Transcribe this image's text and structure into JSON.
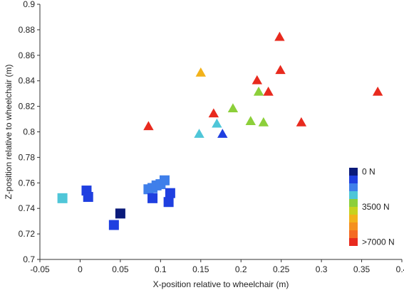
{
  "chart_data": {
    "type": "scatter",
    "title": "",
    "xlabel": "X-position relative to wheelchair (m)",
    "ylabel": "Z-position relative to wheelchair (m)",
    "xlim": [
      -0.05,
      0.4
    ],
    "ylim": [
      0.7,
      0.9
    ],
    "x_ticks": [
      -0.05,
      0,
      0.05,
      0.1,
      0.15,
      0.2,
      0.25,
      0.3,
      0.35,
      0.4
    ],
    "x_tick_labels": [
      "-0.05",
      "0",
      "0.05",
      "0.1",
      "0.15",
      "0.2",
      "0.25",
      "0.3",
      "0.35",
      "0.4"
    ],
    "y_ticks": [
      0.7,
      0.72,
      0.74,
      0.76,
      0.78,
      0.8,
      0.82,
      0.84,
      0.86,
      0.88,
      0.9
    ],
    "y_tick_labels": [
      "0.7",
      "0.72",
      "0.74",
      "0.76",
      "0.78",
      "0.8",
      "0.82",
      "0.84",
      "0.86",
      "0.88",
      "0.9"
    ],
    "grid": false,
    "colorbar": {
      "placement": "right",
      "colors": [
        "#0a1a7a",
        "#1f3fe0",
        "#3f7fea",
        "#4fc6d8",
        "#8ccf3a",
        "#c7d21e",
        "#f2b21a",
        "#f5901e",
        "#f46a22",
        "#e82a1e"
      ],
      "labels": [
        {
          "text": "0 N",
          "index": 0
        },
        {
          "text": "3500 N",
          "index": 4.5
        },
        {
          "text": ">7000 N",
          "index": 9
        }
      ]
    },
    "series": [
      {
        "marker": "square",
        "points": [
          {
            "x": -0.022,
            "y": 0.748,
            "color": "#4fc6d8"
          },
          {
            "x": 0.008,
            "y": 0.754,
            "color": "#1f3fe0"
          },
          {
            "x": 0.01,
            "y": 0.749,
            "color": "#1f3fe0"
          },
          {
            "x": 0.042,
            "y": 0.727,
            "color": "#1f3fe0"
          },
          {
            "x": 0.05,
            "y": 0.736,
            "color": "#0a1a7a"
          },
          {
            "x": 0.085,
            "y": 0.755,
            "color": "#3f7fea"
          },
          {
            "x": 0.09,
            "y": 0.756,
            "color": "#3f7fea"
          },
          {
            "x": 0.095,
            "y": 0.758,
            "color": "#3f7fea"
          },
          {
            "x": 0.1,
            "y": 0.759,
            "color": "#3f7fea"
          },
          {
            "x": 0.105,
            "y": 0.762,
            "color": "#3f7fea"
          },
          {
            "x": 0.09,
            "y": 0.748,
            "color": "#1f3fe0"
          },
          {
            "x": 0.11,
            "y": 0.745,
            "color": "#1f3fe0"
          },
          {
            "x": 0.112,
            "y": 0.752,
            "color": "#1f3fe0"
          }
        ]
      },
      {
        "marker": "triangle",
        "points": [
          {
            "x": 0.085,
            "y": 0.804,
            "color": "#e82a1e"
          },
          {
            "x": 0.148,
            "y": 0.798,
            "color": "#4fc6d8"
          },
          {
            "x": 0.15,
            "y": 0.846,
            "color": "#f2b21a"
          },
          {
            "x": 0.166,
            "y": 0.814,
            "color": "#e82a1e"
          },
          {
            "x": 0.17,
            "y": 0.806,
            "color": "#4fc6d8"
          },
          {
            "x": 0.177,
            "y": 0.798,
            "color": "#1f3fe0"
          },
          {
            "x": 0.19,
            "y": 0.818,
            "color": "#8ccf3a"
          },
          {
            "x": 0.212,
            "y": 0.808,
            "color": "#8ccf3a"
          },
          {
            "x": 0.22,
            "y": 0.84,
            "color": "#e82a1e"
          },
          {
            "x": 0.222,
            "y": 0.831,
            "color": "#8ccf3a"
          },
          {
            "x": 0.228,
            "y": 0.807,
            "color": "#8ccf3a"
          },
          {
            "x": 0.234,
            "y": 0.831,
            "color": "#e82a1e"
          },
          {
            "x": 0.248,
            "y": 0.874,
            "color": "#e82a1e"
          },
          {
            "x": 0.249,
            "y": 0.848,
            "color": "#e82a1e"
          },
          {
            "x": 0.275,
            "y": 0.807,
            "color": "#e82a1e"
          },
          {
            "x": 0.37,
            "y": 0.831,
            "color": "#e82a1e"
          }
        ]
      }
    ]
  }
}
